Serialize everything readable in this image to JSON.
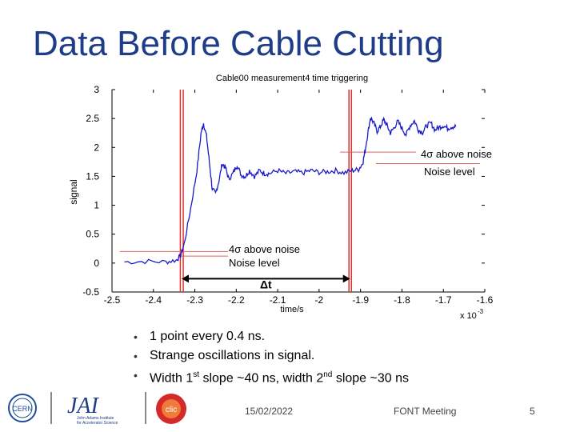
{
  "slide": {
    "title": "Data Before Cable Cutting",
    "bullets": [
      {
        "parts": [
          {
            "t": "1 point every 0.4 ns."
          }
        ]
      },
      {
        "parts": [
          {
            "t": "Strange oscillations in signal."
          }
        ]
      },
      {
        "parts": [
          {
            "t": "Width 1"
          },
          {
            "t": "st",
            "sup": true
          },
          {
            "t": " slope ~40 ns, width 2"
          },
          {
            "t": "nd",
            "sup": true
          },
          {
            "t": " slope ~30 ns"
          }
        ]
      }
    ],
    "footer": {
      "date": "15/02/2022",
      "meeting": "FONT Meeting",
      "page": "5"
    },
    "logos": {
      "cern": "CERN",
      "jai_name": "JAI",
      "jai_sub1": "John Adams Institute",
      "jai_sub2": "for Accelerator Science",
      "clic": "clic"
    }
  },
  "chart_data": {
    "type": "line",
    "title": "Cable00 measurement4 time triggering",
    "xlabel": "time/s",
    "ylabel": "signal",
    "x_multiplier_label": "x 10",
    "x_multiplier_exp": "-3",
    "xlim": [
      -2.5,
      -1.6
    ],
    "ylim": [
      -0.5,
      3
    ],
    "x_ticks": [
      "-2.5",
      "-2.4",
      "-2.3",
      "-2.2",
      "-2.1",
      "-2",
      "-1.9",
      "-1.8",
      "-1.7",
      "-1.6"
    ],
    "y_ticks": [
      "-0.5",
      "0",
      "0.5",
      "1",
      "1.5",
      "2",
      "2.5",
      "3"
    ],
    "grid": false,
    "series": [
      {
        "color": "#1a1acc",
        "x": [
          -2.47,
          -2.42,
          -2.37,
          -2.345,
          -2.335,
          -2.325,
          -2.31,
          -2.295,
          -2.285,
          -2.279,
          -2.272,
          -2.265,
          -2.258,
          -2.25,
          -2.242,
          -2.234,
          -2.226,
          -2.218,
          -2.208,
          -2.198,
          -2.188,
          -2.178,
          -2.168,
          -2.156,
          -2.144,
          -2.132,
          -2.12,
          -2.1,
          -2.08,
          -2.06,
          -2.04,
          -2.02,
          -2.0,
          -1.98,
          -1.96,
          -1.94,
          -1.92,
          -1.905,
          -1.895,
          -1.89,
          -1.883,
          -1.876,
          -1.868,
          -1.86,
          -1.852,
          -1.844,
          -1.836,
          -1.828,
          -1.82,
          -1.81,
          -1.8,
          -1.79,
          -1.78,
          -1.77,
          -1.76,
          -1.75,
          -1.74,
          -1.73,
          -1.72,
          -1.71,
          -1.7,
          -1.69,
          -1.68,
          -1.67
        ],
        "y": [
          0.02,
          0.03,
          0.02,
          0.05,
          0.12,
          0.35,
          0.95,
          1.6,
          2.25,
          2.42,
          2.2,
          1.75,
          1.28,
          1.2,
          1.42,
          1.72,
          1.65,
          1.45,
          1.55,
          1.7,
          1.52,
          1.5,
          1.6,
          1.5,
          1.6,
          1.55,
          1.55,
          1.6,
          1.55,
          1.58,
          1.56,
          1.6,
          1.57,
          1.58,
          1.6,
          1.56,
          1.6,
          1.62,
          1.72,
          1.9,
          2.22,
          2.52,
          2.42,
          2.28,
          2.36,
          2.48,
          2.38,
          2.25,
          2.33,
          2.45,
          2.33,
          2.22,
          2.38,
          2.46,
          2.3,
          2.26,
          2.38,
          2.42,
          2.3,
          2.35,
          2.38,
          2.33,
          2.36,
          2.36
        ]
      }
    ],
    "vertical_markers": [
      {
        "x": -2.335,
        "color": "#e03030"
      },
      {
        "x": -2.328,
        "color": "#e03030"
      },
      {
        "x": -1.928,
        "color": "#e03030"
      },
      {
        "x": -1.922,
        "color": "#e03030"
      }
    ],
    "annotations": {
      "upper_label_1": "4σ above noise",
      "upper_label_2": "Noise level",
      "lower_label_1": "4σ above noise",
      "lower_label_2": "Noise level",
      "delta_label": "Δt",
      "upper_line_1_y": 1.92,
      "upper_line_2_y": 1.72,
      "lower_line_1_y": 0.2,
      "lower_line_2_y": 0.12,
      "arrow_y": -0.27,
      "arrow_x": [
        -2.332,
        -1.925
      ]
    }
  }
}
